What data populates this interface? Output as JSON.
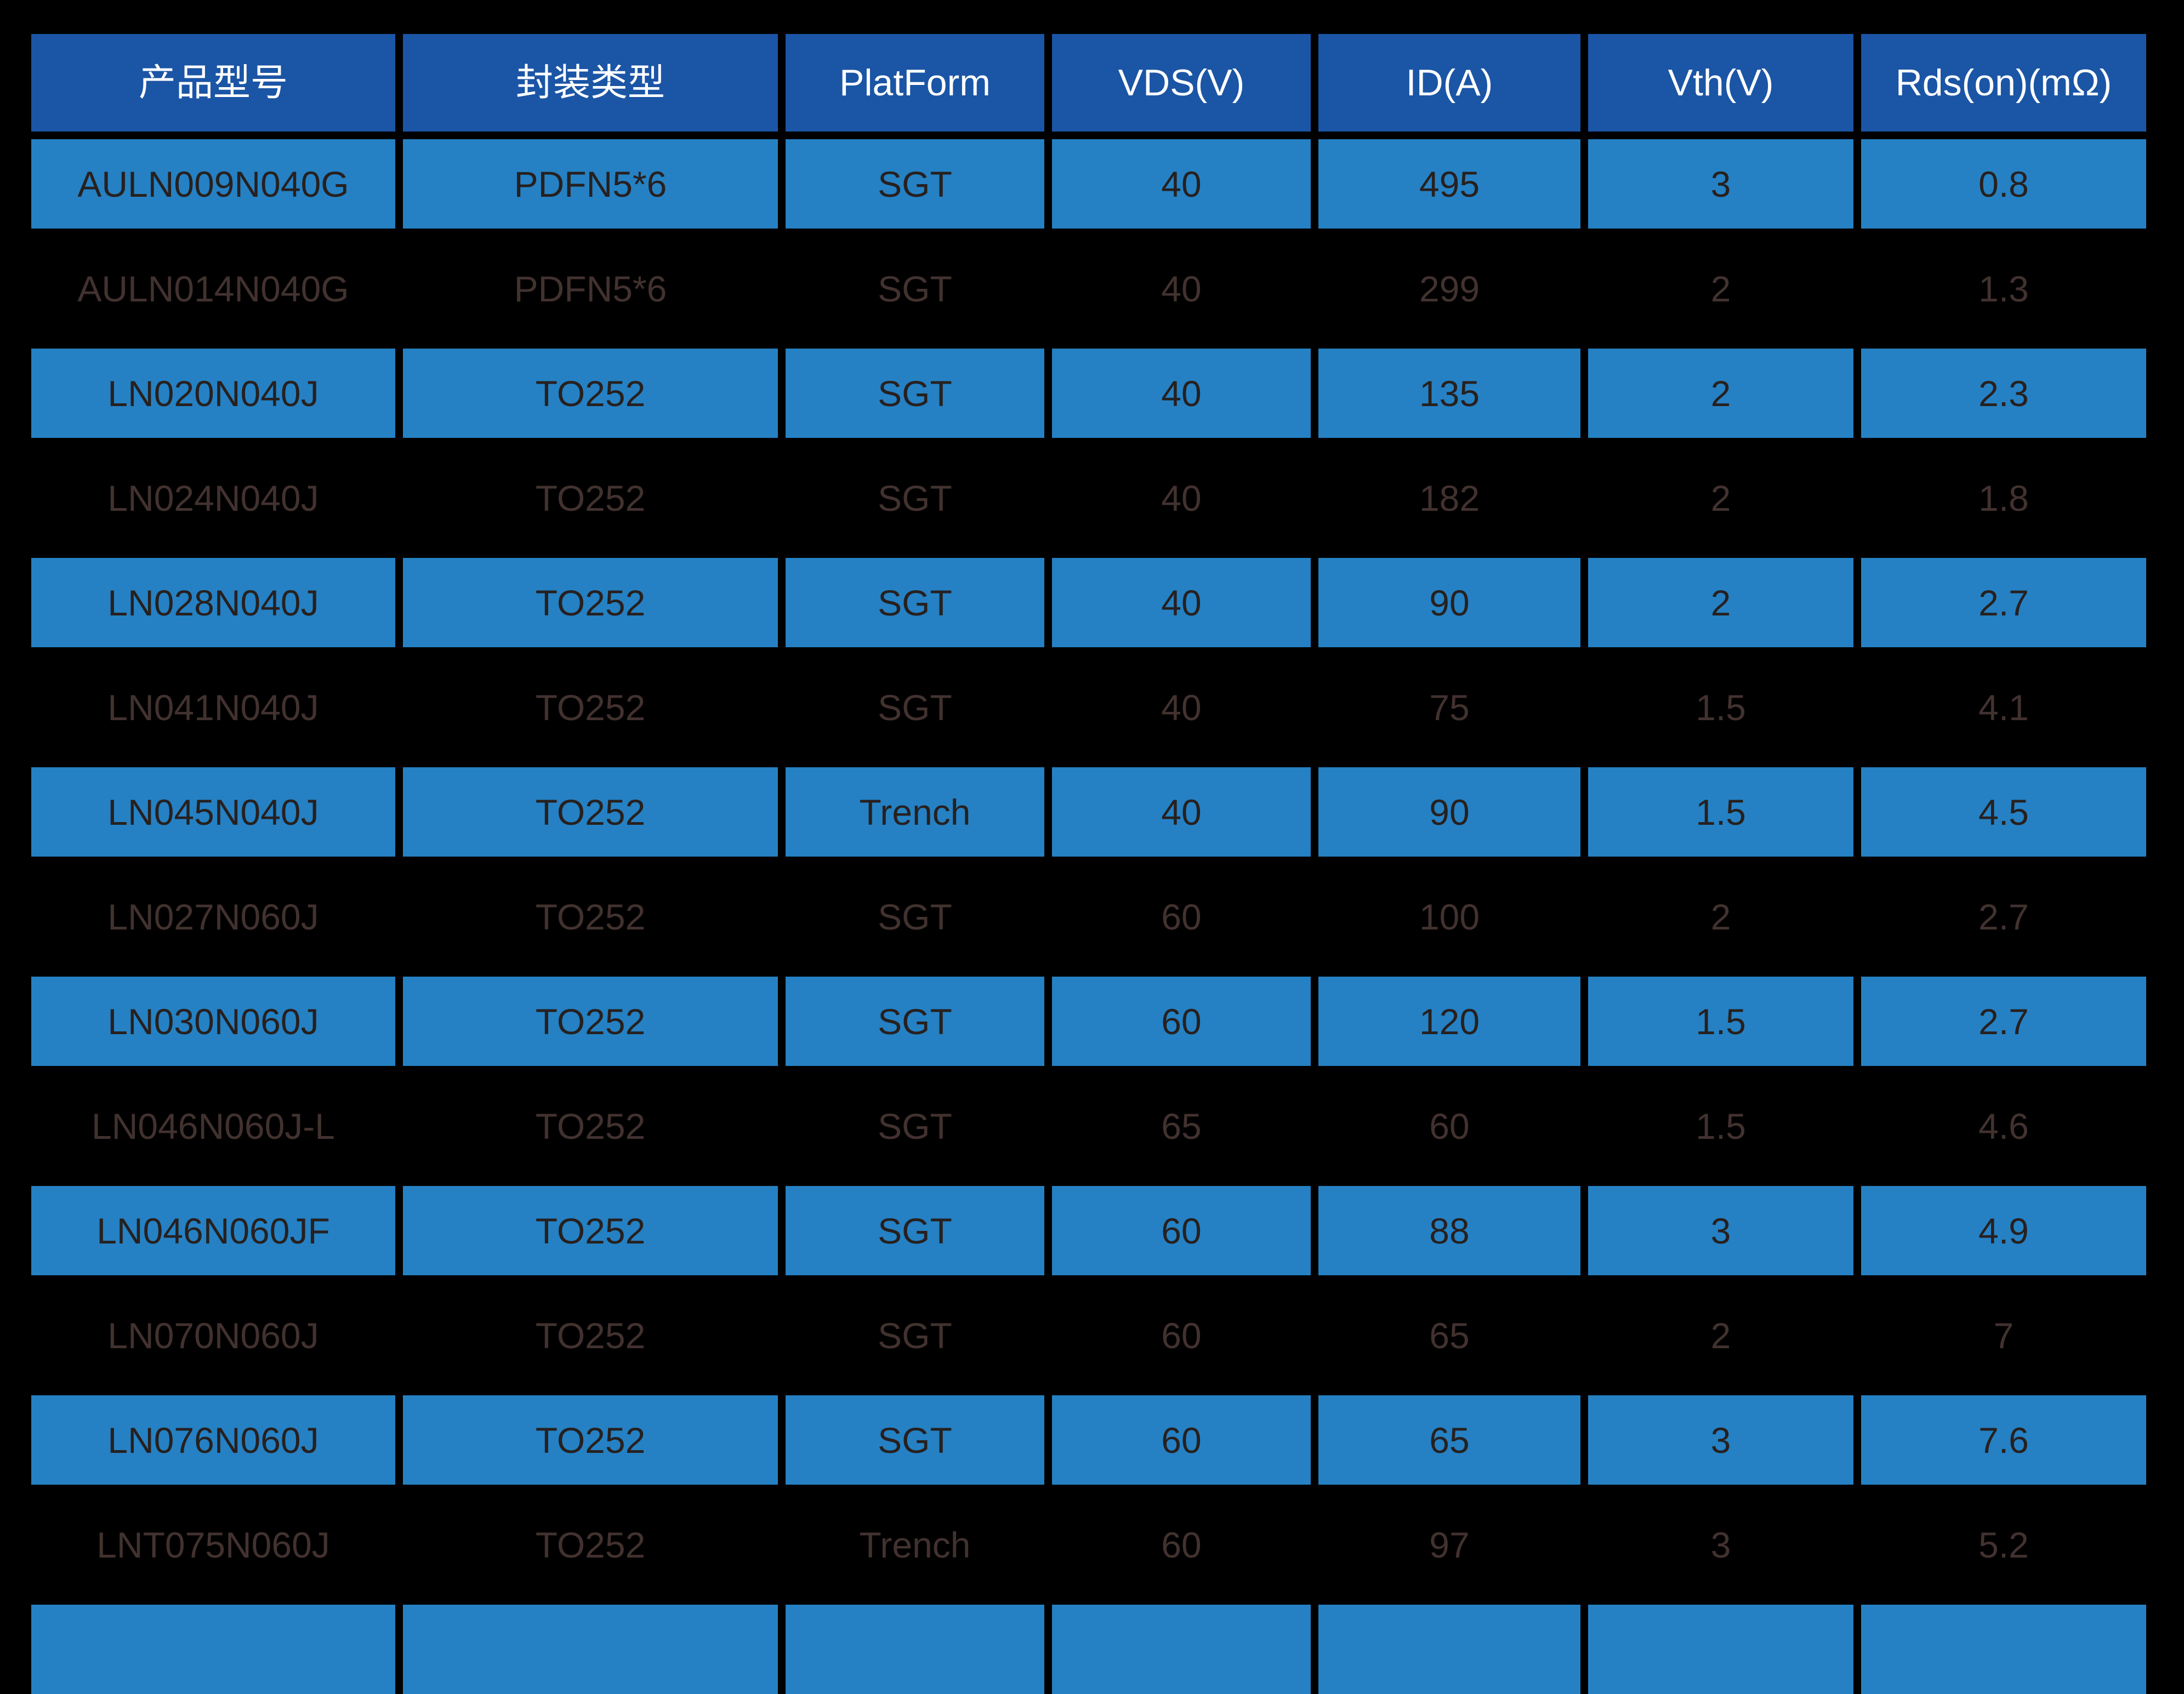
{
  "chart_data": {
    "type": "table",
    "title": "",
    "columns": [
      "产品型号",
      "封装类型",
      "PlatForm",
      "VDS(V)",
      "ID(A)",
      "Vth(V)",
      "Rds(on)(mΩ)"
    ],
    "rows": [
      [
        "AULN009N040G",
        "PDFN5*6",
        "SGT",
        "40",
        "495",
        "3",
        "0.8"
      ],
      [
        "AULN014N040G",
        "PDFN5*6",
        "SGT",
        "40",
        "299",
        "2",
        "1.3"
      ],
      [
        "LN020N040J",
        "TO252",
        "SGT",
        "40",
        "135",
        "2",
        "2.3"
      ],
      [
        "LN024N040J",
        "TO252",
        "SGT",
        "40",
        "182",
        "2",
        "1.8"
      ],
      [
        "LN028N040J",
        "TO252",
        "SGT",
        "40",
        "90",
        "2",
        "2.7"
      ],
      [
        "LN041N040J",
        "TO252",
        "SGT",
        "40",
        "75",
        "1.5",
        "4.1"
      ],
      [
        "LN045N040J",
        "TO252",
        "Trench",
        "40",
        "90",
        "1.5",
        "4.5"
      ],
      [
        "LN027N060J",
        "TO252",
        "SGT",
        "60",
        "100",
        "2",
        "2.7"
      ],
      [
        "LN030N060J",
        "TO252",
        "SGT",
        "60",
        "120",
        "1.5",
        "2.7"
      ],
      [
        "LN046N060J-L",
        "TO252",
        "SGT",
        "65",
        "60",
        "1.5",
        "4.6"
      ],
      [
        "LN046N060JF",
        "TO252",
        "SGT",
        "60",
        "88",
        "3",
        "4.9"
      ],
      [
        "LN070N060J",
        "TO252",
        "SGT",
        "60",
        "65",
        "2",
        "7"
      ],
      [
        "LN076N060J",
        "TO252",
        "SGT",
        "60",
        "65",
        "3",
        "7.6"
      ],
      [
        "LNT075N060J",
        "TO252",
        "Trench",
        "60",
        "97",
        "3",
        "5.2"
      ]
    ],
    "row_emphasis": [
      "bright",
      "dim",
      "bright",
      "dim",
      "bright",
      "dim",
      "bright",
      "dim",
      "bright",
      "dim",
      "bright",
      "dim",
      "bright",
      "dim"
    ],
    "partial_next_row_visible": true,
    "layout": "dark background, alternating highlighted (blue) and faded (unfilled) rows, header row in darker blue"
  },
  "colors": {
    "background": "#000000",
    "header_bg": "#1b55a5",
    "header_text": "#ffffff",
    "bright_row_bg": "#2581c3",
    "bright_row_text": "#27201f",
    "dim_row_text": "#42322f"
  }
}
